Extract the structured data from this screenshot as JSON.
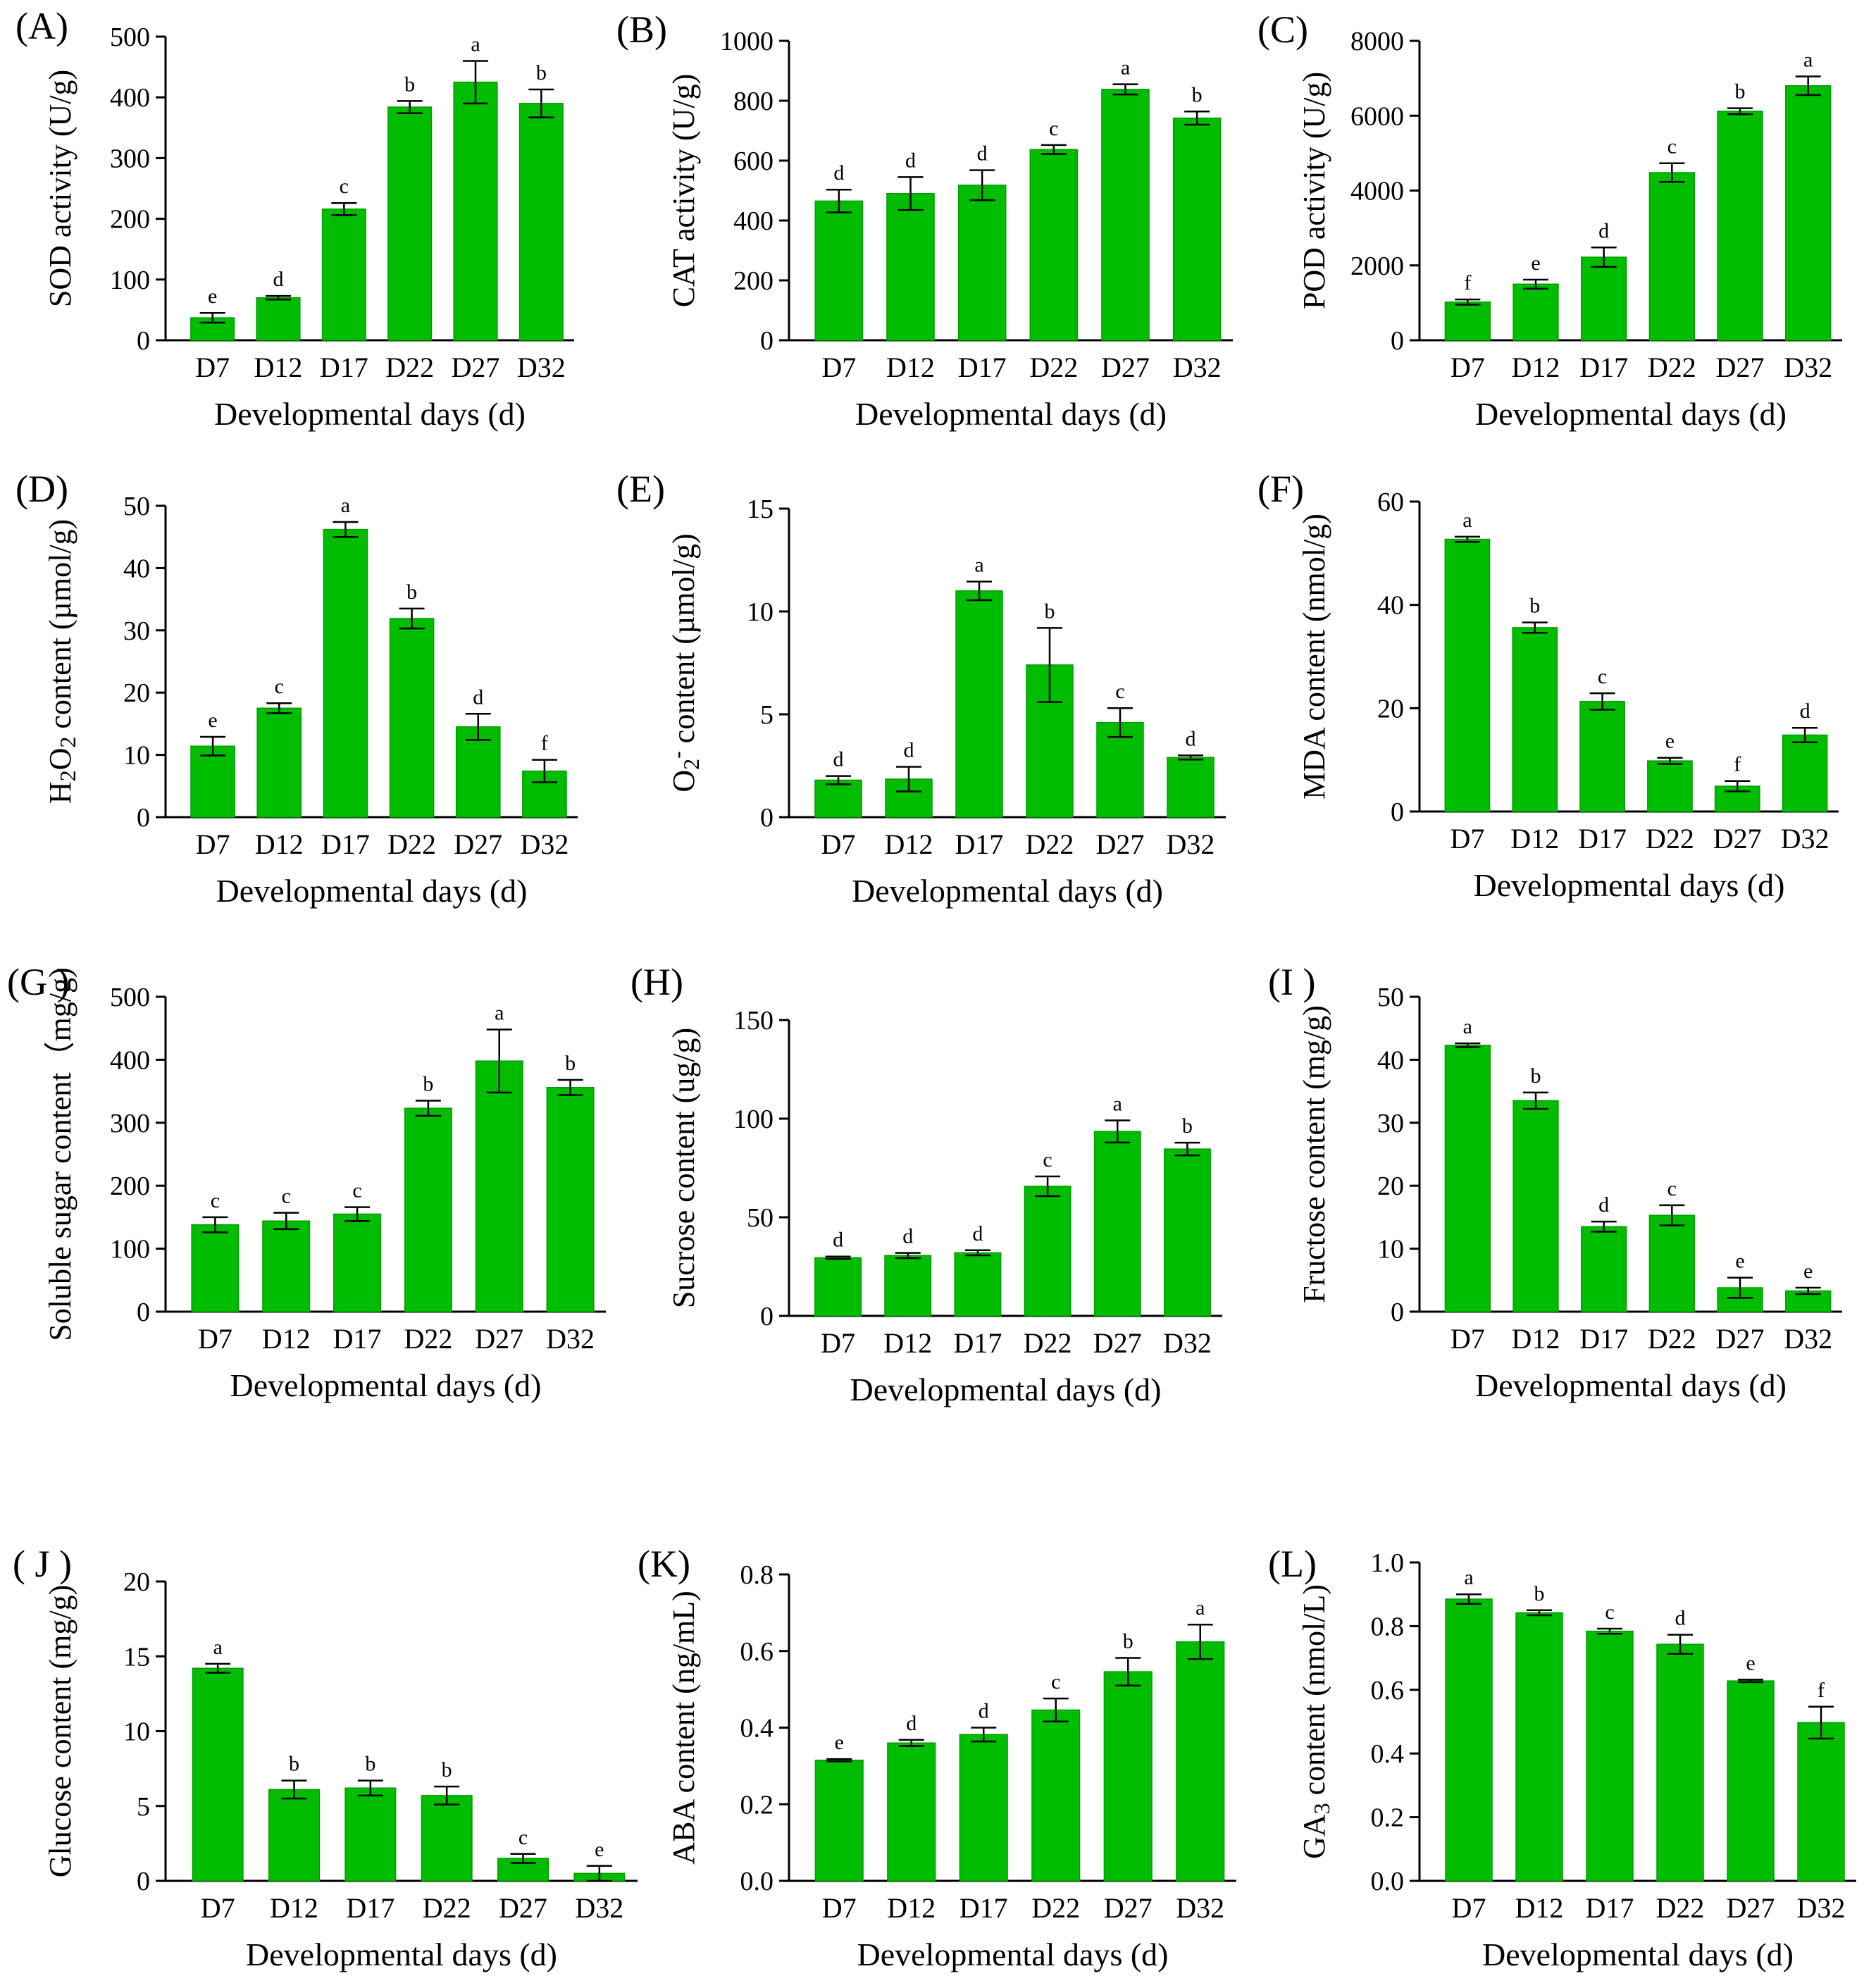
{
  "figure": {
    "bar_color": "#00BD00",
    "bar_edge_color": "#009E00",
    "axis_color": "#000000"
  },
  "chart_data": [
    {
      "type": "bar",
      "panel": "(A)",
      "ylabel": "SOD activity (U/g)",
      "xlabel": "Developmental days (d)",
      "categories": [
        "D7",
        "D12",
        "D17",
        "D22",
        "D27",
        "D32"
      ],
      "values": [
        37,
        70,
        216,
        384,
        425,
        390
      ],
      "errors": [
        8,
        3,
        10,
        10,
        35,
        23
      ],
      "letters": [
        "e",
        "d",
        "c",
        "b",
        "a",
        "b"
      ],
      "ylim": [
        0,
        500
      ],
      "yticks": [
        "0",
        "100",
        "200",
        "300",
        "400",
        "500"
      ],
      "yscale": 1
    },
    {
      "type": "bar",
      "panel": "(B)",
      "ylabel": "CAT activity (U/g)",
      "xlabel": "Developmental days (d)",
      "categories": [
        "D7",
        "D12",
        "D17",
        "D22",
        "D27",
        "D32"
      ],
      "values": [
        465,
        490,
        518,
        637,
        838,
        742
      ],
      "errors": [
        38,
        55,
        50,
        15,
        17,
        22
      ],
      "letters": [
        "d",
        "d",
        "d",
        "c",
        "a",
        "b"
      ],
      "ylim": [
        0,
        1000
      ],
      "yticks": [
        "0",
        "200",
        "400",
        "600",
        "800",
        "1000"
      ],
      "yscale": 1
    },
    {
      "type": "bar",
      "panel": "(C)",
      "ylabel": "POD activity (U/g)",
      "xlabel": "Developmental days (d)",
      "categories": [
        "D7",
        "D12",
        "D17",
        "D22",
        "D27",
        "D32"
      ],
      "values": [
        1020,
        1500,
        2220,
        4480,
        6120,
        6800
      ],
      "errors": [
        70,
        120,
        260,
        250,
        80,
        250
      ],
      "letters": [
        "f",
        "e",
        "d",
        "c",
        "b",
        "a"
      ],
      "ylim": [
        0,
        8000
      ],
      "yticks": [
        "0",
        "2000",
        "4000",
        "6000",
        "8000"
      ],
      "yscale": 1
    },
    {
      "type": "bar",
      "panel": "(D)",
      "ylabel_parts": [
        [
          "H",
          0
        ],
        [
          "2",
          1
        ],
        [
          "O",
          0
        ],
        [
          "2",
          1
        ],
        [
          " content (µmol/g)",
          0
        ]
      ],
      "xlabel": "Developmental days (d)",
      "categories": [
        "D7",
        "D12",
        "D17",
        "D22",
        "D27",
        "D32"
      ],
      "values": [
        11.4,
        17.5,
        46.2,
        31.9,
        14.5,
        7.4
      ],
      "errors": [
        1.5,
        0.8,
        1.2,
        1.6,
        2.1,
        1.8
      ],
      "letters": [
        "e",
        "c",
        "a",
        "b",
        "d",
        "f"
      ],
      "ylim": [
        0,
        50
      ],
      "yticks": [
        "0",
        "10",
        "20",
        "30",
        "40",
        "50"
      ],
      "yscale": 1
    },
    {
      "type": "bar",
      "panel": "(E)",
      "ylabel_parts": [
        [
          "O",
          0
        ],
        [
          "2",
          1
        ],
        [
          "-",
          2
        ],
        [
          " content (µmol/g)",
          0
        ]
      ],
      "xlabel": "Developmental days (d)",
      "categories": [
        "D7",
        "D12",
        "D17",
        "D22",
        "D27",
        "D32"
      ],
      "values": [
        1.8,
        1.85,
        11.0,
        7.4,
        4.6,
        2.9
      ],
      "errors": [
        0.2,
        0.6,
        0.45,
        1.8,
        0.7,
        0.1
      ],
      "letters": [
        "d",
        "d",
        "a",
        "b",
        "c",
        "d"
      ],
      "ylim": [
        0,
        15
      ],
      "yticks": [
        "0",
        "5",
        "10",
        "15"
      ],
      "yscale": 1
    },
    {
      "type": "bar",
      "panel": "(F)",
      "ylabel": "MDA content (nmol/g)",
      "xlabel": "Developmental days (d)",
      "categories": [
        "D7",
        "D12",
        "D17",
        "D22",
        "D27",
        "D32"
      ],
      "values": [
        52.7,
        35.6,
        21.3,
        9.8,
        4.9,
        14.8
      ],
      "errors": [
        0.5,
        1.0,
        1.6,
        0.6,
        1.0,
        1.4
      ],
      "letters": [
        "a",
        "b",
        "c",
        "e",
        "f",
        "d"
      ],
      "ylim": [
        0,
        60
      ],
      "yticks": [
        "0",
        "20",
        "40",
        "60"
      ],
      "yscale": 1
    },
    {
      "type": "bar",
      "panel": "(G )",
      "ylabel": "Soluble sugar content（mg/g)",
      "xlabel": "Developmental days (d)",
      "categories": [
        "D7",
        "D12",
        "D17",
        "D22",
        "D27",
        "D32"
      ],
      "values": [
        138,
        144,
        155,
        323,
        398,
        356
      ],
      "errors": [
        12,
        13,
        11,
        12,
        50,
        12
      ],
      "letters": [
        "c",
        "c",
        "c",
        "b",
        "a",
        "b"
      ],
      "ylim": [
        0,
        500
      ],
      "yticks": [
        "0",
        "100",
        "200",
        "300",
        "400",
        "500"
      ],
      "yscale": 1
    },
    {
      "type": "bar",
      "panel": "(H)",
      "ylabel": "Sucrose content (ug/g)",
      "xlabel": "Developmental days (d)",
      "categories": [
        "D7",
        "D12",
        "D17",
        "D22",
        "D27",
        "D32"
      ],
      "values": [
        29.5,
        30.6,
        32.0,
        65.7,
        93.5,
        84.6
      ],
      "errors": [
        0.6,
        1.3,
        1.3,
        5.0,
        5.6,
        3.2
      ],
      "letters": [
        "d",
        "d",
        "d",
        "c",
        "a",
        "b"
      ],
      "ylim": [
        0,
        150
      ],
      "yticks": [
        "0",
        "50",
        "100",
        "150"
      ],
      "yscale": 1
    },
    {
      "type": "bar",
      "panel": "(I )",
      "ylabel": "Fructose content (mg/g)",
      "xlabel": "Developmental days (d)",
      "categories": [
        "D7",
        "D12",
        "D17",
        "D22",
        "D27",
        "D32"
      ],
      "values": [
        42.3,
        33.5,
        13.5,
        15.3,
        3.8,
        3.3
      ],
      "errors": [
        0.3,
        1.3,
        0.8,
        1.6,
        1.6,
        0.5
      ],
      "letters": [
        "a",
        "b",
        "d",
        "c",
        "e",
        "e"
      ],
      "ylim": [
        0,
        50
      ],
      "yticks": [
        "0",
        "10",
        "20",
        "30",
        "40",
        "50"
      ],
      "yscale": 1
    },
    {
      "type": "bar",
      "panel": "( J )",
      "ylabel": "Glucose content (mg/g)",
      "xlabel": "Developmental days (d)",
      "categories": [
        "D7",
        "D12",
        "D17",
        "D22",
        "D27",
        "D32"
      ],
      "values": [
        14.2,
        6.1,
        6.2,
        5.7,
        1.5,
        0.5
      ],
      "errors": [
        0.3,
        0.6,
        0.5,
        0.6,
        0.3,
        0.5
      ],
      "letters": [
        "a",
        "b",
        "b",
        "b",
        "c",
        "e"
      ],
      "ylim": [
        0,
        20
      ],
      "yticks": [
        "0",
        "5",
        "10",
        "15",
        "20"
      ],
      "yscale": 1
    },
    {
      "type": "bar",
      "panel": "(K)",
      "ylabel": "ABA content (ng/mL)",
      "xlabel": "Developmental days (d)",
      "categories": [
        "D7",
        "D12",
        "D17",
        "D22",
        "D27",
        "D32"
      ],
      "values": [
        0.315,
        0.36,
        0.382,
        0.446,
        0.546,
        0.624
      ],
      "errors": [
        0.003,
        0.008,
        0.018,
        0.03,
        0.036,
        0.045
      ],
      "letters": [
        "e",
        "d",
        "d",
        "c",
        "b",
        "a"
      ],
      "ylim": [
        0,
        0.8
      ],
      "yticks": [
        "0.0",
        "0.2",
        "0.4",
        "0.6",
        "0.8"
      ],
      "yscale": 1
    },
    {
      "type": "bar",
      "panel": "(L)",
      "ylabel_parts": [
        [
          "GA",
          0
        ],
        [
          "3",
          1
        ],
        [
          " content (nmol/L)",
          0
        ]
      ],
      "xlabel": "Developmental days (d)",
      "categories": [
        "D7",
        "D12",
        "D17",
        "D22",
        "D27",
        "D32"
      ],
      "values": [
        0.885,
        0.842,
        0.784,
        0.743,
        0.628,
        0.497
      ],
      "errors": [
        0.015,
        0.008,
        0.008,
        0.03,
        0.004,
        0.05
      ],
      "letters": [
        "a",
        "b",
        "c",
        "d",
        "e",
        "f"
      ],
      "ylim": [
        0,
        1.0
      ],
      "yticks": [
        "0.0",
        "0.2",
        "0.4",
        "0.6",
        "0.8",
        "1.0"
      ],
      "yscale": 1
    }
  ]
}
